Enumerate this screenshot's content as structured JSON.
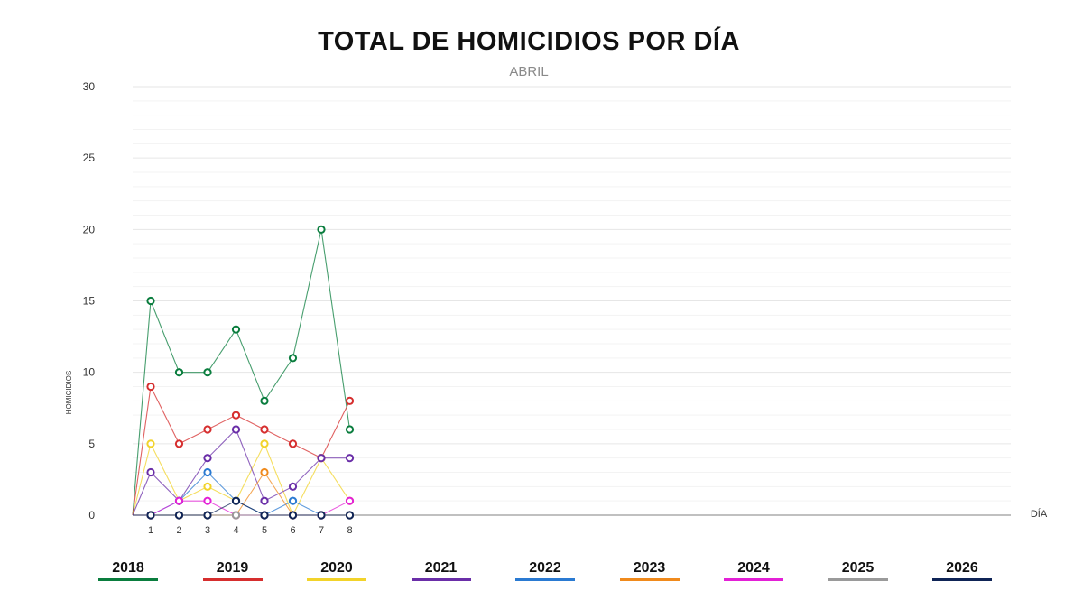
{
  "chart_data": {
    "type": "line",
    "title": "TOTAL DE HOMICIDIOS POR DÍA",
    "subtitle": "ABRIL",
    "ylabel": "HOMICIDIOS",
    "xlabel": "DÍA",
    "ylim": [
      0,
      30
    ],
    "yticks": [
      "0",
      "5",
      "10",
      "15",
      "20",
      "25",
      "30"
    ],
    "x": [
      "1",
      "2",
      "3",
      "4",
      "5",
      "6",
      "7",
      "8"
    ],
    "grid": true,
    "legend_position": "bottom",
    "series": [
      {
        "name": "2018",
        "color": "#0a7d3e",
        "values": [
          15,
          10,
          10,
          13,
          8,
          11,
          20,
          6
        ]
      },
      {
        "name": "2019",
        "color": "#d62e2e",
        "values": [
          9,
          5,
          6,
          7,
          6,
          5,
          4,
          8
        ]
      },
      {
        "name": "2020",
        "color": "#f2d32a",
        "values": [
          5,
          1,
          2,
          1,
          5,
          0,
          4,
          1
        ]
      },
      {
        "name": "2021",
        "color": "#6a2ea8",
        "values": [
          3,
          1,
          4,
          6,
          1,
          2,
          4,
          4
        ]
      },
      {
        "name": "2022",
        "color": "#2a7ad2",
        "values": [
          0,
          1,
          3,
          1,
          0,
          1,
          0,
          0
        ]
      },
      {
        "name": "2023",
        "color": "#f08a1c",
        "values": [
          0,
          0,
          0,
          0,
          3,
          0,
          0,
          0
        ]
      },
      {
        "name": "2024",
        "color": "#e320d6",
        "values": [
          0,
          1,
          1,
          0,
          0,
          0,
          0,
          1
        ]
      },
      {
        "name": "2025",
        "color": "#9a9a9a",
        "values": [
          0,
          0,
          0,
          0,
          0,
          0,
          0,
          0
        ]
      },
      {
        "name": "2026",
        "color": "#0f2456",
        "values": [
          0,
          0,
          0,
          1,
          0,
          0,
          0,
          0
        ]
      }
    ]
  }
}
